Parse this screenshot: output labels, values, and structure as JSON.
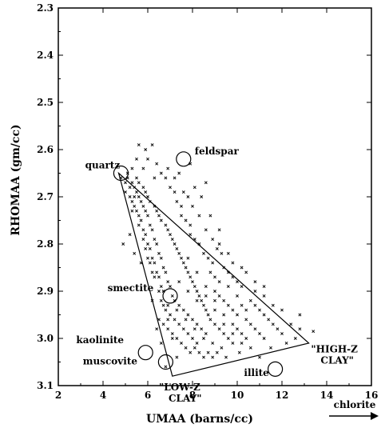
{
  "chart_data": {
    "type": "scatter",
    "title": "",
    "xlabel": "UMAA (barns/cc)",
    "ylabel": "RHOMAA (gm/cc)",
    "xlim": [
      2,
      16
    ],
    "ylim": [
      2.3,
      3.1
    ],
    "y_inverted": true,
    "x_ticks": [
      "2",
      "4",
      "6",
      "8",
      "10",
      "12",
      "14",
      "16"
    ],
    "y_ticks": [
      "2.3",
      "2.4",
      "2.5",
      "2.6",
      "2.7",
      "2.8",
      "2.9",
      "3.0",
      "3.1"
    ],
    "grid": false,
    "marker": "x",
    "arrow_label": "chlorite",
    "triangle": [
      {
        "x": 4.7,
        "y": 2.65
      },
      {
        "x": 13.2,
        "y": 3.01
      },
      {
        "x": 7.1,
        "y": 3.08
      }
    ],
    "triangle_labels": [
      {
        "lines": [
          "\"HIGH-Z",
          "CLAY\""
        ],
        "x": 13.3,
        "y": 3.03
      },
      {
        "lines": [
          "\"LOW-Z",
          "CLAY\""
        ],
        "x": 6.5,
        "y": 3.11
      }
    ],
    "minerals": [
      {
        "name": "quartz",
        "x": 4.8,
        "y": 2.65,
        "label_x": 3.2,
        "label_y": 2.64
      },
      {
        "name": "feldspar",
        "x": 7.6,
        "y": 2.62,
        "label_x": 8.1,
        "label_y": 2.61
      },
      {
        "name": "smectite",
        "x": 7.0,
        "y": 2.91,
        "label_x": 4.2,
        "label_y": 2.9
      },
      {
        "name": "kaolinite",
        "x": 5.9,
        "y": 3.03,
        "label_x": 2.8,
        "label_y": 3.01
      },
      {
        "name": "muscovite",
        "x": 6.8,
        "y": 3.05,
        "label_x": 3.1,
        "label_y": 3.055
      },
      {
        "name": "illite",
        "x": 11.7,
        "y": 3.065,
        "label_x": 10.3,
        "label_y": 3.08
      }
    ],
    "points": [
      [
        4.8,
        2.66
      ],
      [
        5.0,
        2.67
      ],
      [
        5.1,
        2.66
      ],
      [
        5.2,
        2.68
      ],
      [
        5.3,
        2.67
      ],
      [
        5.0,
        2.69
      ],
      [
        5.4,
        2.68
      ],
      [
        5.5,
        2.69
      ],
      [
        5.2,
        2.7
      ],
      [
        5.6,
        2.7
      ],
      [
        5.3,
        2.71
      ],
      [
        5.7,
        2.71
      ],
      [
        5.4,
        2.72
      ],
      [
        5.8,
        2.72
      ],
      [
        5.5,
        2.73
      ],
      [
        5.9,
        2.73
      ],
      [
        5.6,
        2.74
      ],
      [
        6.0,
        2.74
      ],
      [
        5.7,
        2.75
      ],
      [
        6.1,
        2.76
      ],
      [
        5.8,
        2.77
      ],
      [
        6.2,
        2.77
      ],
      [
        5.9,
        2.78
      ],
      [
        6.3,
        2.79
      ],
      [
        6.0,
        2.8
      ],
      [
        6.4,
        2.8
      ],
      [
        6.1,
        2.81
      ],
      [
        6.5,
        2.82
      ],
      [
        6.2,
        2.83
      ],
      [
        6.6,
        2.83
      ],
      [
        6.3,
        2.84
      ],
      [
        6.7,
        2.85
      ],
      [
        6.4,
        2.86
      ],
      [
        6.8,
        2.86
      ],
      [
        6.5,
        2.87
      ],
      [
        6.9,
        2.88
      ],
      [
        6.6,
        2.89
      ],
      [
        7.0,
        2.89
      ],
      [
        6.7,
        2.9
      ],
      [
        7.1,
        2.91
      ],
      [
        5.1,
        2.65
      ],
      [
        5.3,
        2.64
      ],
      [
        5.5,
        2.66
      ],
      [
        5.6,
        2.67
      ],
      [
        5.8,
        2.68
      ],
      [
        5.9,
        2.69
      ],
      [
        6.0,
        2.7
      ],
      [
        6.1,
        2.71
      ],
      [
        6.3,
        2.72
      ],
      [
        6.4,
        2.73
      ],
      [
        6.5,
        2.74
      ],
      [
        6.6,
        2.75
      ],
      [
        6.8,
        2.76
      ],
      [
        6.9,
        2.77
      ],
      [
        7.0,
        2.78
      ],
      [
        7.1,
        2.79
      ],
      [
        7.2,
        2.8
      ],
      [
        7.3,
        2.81
      ],
      [
        7.4,
        2.82
      ],
      [
        7.5,
        2.83
      ],
      [
        7.6,
        2.84
      ],
      [
        7.7,
        2.85
      ],
      [
        7.8,
        2.86
      ],
      [
        7.9,
        2.87
      ],
      [
        8.0,
        2.88
      ],
      [
        8.1,
        2.89
      ],
      [
        8.2,
        2.9
      ],
      [
        8.3,
        2.91
      ],
      [
        8.4,
        2.92
      ],
      [
        8.5,
        2.93
      ],
      [
        8.6,
        2.94
      ],
      [
        8.7,
        2.95
      ],
      [
        7.2,
        2.92
      ],
      [
        7.4,
        2.93
      ],
      [
        7.6,
        2.94
      ],
      [
        7.8,
        2.95
      ],
      [
        8.0,
        2.96
      ],
      [
        8.2,
        2.97
      ],
      [
        8.4,
        2.98
      ],
      [
        8.6,
        2.99
      ],
      [
        8.8,
        2.96
      ],
      [
        9.0,
        2.97
      ],
      [
        9.2,
        2.98
      ],
      [
        9.4,
        2.99
      ],
      [
        9.6,
        3.0
      ],
      [
        9.8,
        3.01
      ],
      [
        10.0,
        2.98
      ],
      [
        10.2,
        2.99
      ],
      [
        10.4,
        3.0
      ],
      [
        10.6,
        2.97
      ],
      [
        10.8,
        2.98
      ],
      [
        11.0,
        2.99
      ],
      [
        11.2,
        3.0
      ],
      [
        11.4,
        2.96
      ],
      [
        11.6,
        2.97
      ],
      [
        11.8,
        2.98
      ],
      [
        12.0,
        2.99
      ],
      [
        12.4,
        2.97
      ],
      [
        12.8,
        2.98
      ],
      [
        13.4,
        2.985
      ],
      [
        9.0,
        2.9
      ],
      [
        9.2,
        2.91
      ],
      [
        9.4,
        2.92
      ],
      [
        9.6,
        2.93
      ],
      [
        9.8,
        2.94
      ],
      [
        10.0,
        2.95
      ],
      [
        10.2,
        2.93
      ],
      [
        10.4,
        2.94
      ],
      [
        10.6,
        2.92
      ],
      [
        10.8,
        2.93
      ],
      [
        11.0,
        2.94
      ],
      [
        11.2,
        2.95
      ],
      [
        8.8,
        2.86
      ],
      [
        9.0,
        2.87
      ],
      [
        9.2,
        2.88
      ],
      [
        9.4,
        2.85
      ],
      [
        9.6,
        2.86
      ],
      [
        9.8,
        2.87
      ],
      [
        10.0,
        2.88
      ],
      [
        10.2,
        2.89
      ],
      [
        8.5,
        2.82
      ],
      [
        8.7,
        2.83
      ],
      [
        8.9,
        2.84
      ],
      [
        9.1,
        2.81
      ],
      [
        9.3,
        2.82
      ],
      [
        7.9,
        2.78
      ],
      [
        8.1,
        2.79
      ],
      [
        8.3,
        2.8
      ],
      [
        7.5,
        2.74
      ],
      [
        7.7,
        2.75
      ],
      [
        7.9,
        2.76
      ],
      [
        7.3,
        2.71
      ],
      [
        7.5,
        2.72
      ],
      [
        7.0,
        2.68
      ],
      [
        7.2,
        2.69
      ],
      [
        6.8,
        2.66
      ],
      [
        5.6,
        2.59
      ],
      [
        5.9,
        2.6
      ],
      [
        6.2,
        2.59
      ],
      [
        6.0,
        2.62
      ],
      [
        6.4,
        2.63
      ],
      [
        6.6,
        2.65
      ],
      [
        6.3,
        2.66
      ],
      [
        6.9,
        2.64
      ],
      [
        7.2,
        2.66
      ],
      [
        7.6,
        2.69
      ],
      [
        8.0,
        2.72
      ],
      [
        8.3,
        2.74
      ],
      [
        8.6,
        2.77
      ],
      [
        8.9,
        2.79
      ],
      [
        9.2,
        2.8
      ],
      [
        9.6,
        2.82
      ],
      [
        6.5,
        2.96
      ],
      [
        6.7,
        2.97
      ],
      [
        6.9,
        2.98
      ],
      [
        7.1,
        2.99
      ],
      [
        7.3,
        3.0
      ],
      [
        7.5,
        3.01
      ],
      [
        7.7,
        3.02
      ],
      [
        7.9,
        3.03
      ],
      [
        8.1,
        3.02
      ],
      [
        8.3,
        3.03
      ],
      [
        8.5,
        3.04
      ],
      [
        8.7,
        3.03
      ],
      [
        8.9,
        3.04
      ],
      [
        9.1,
        3.03
      ],
      [
        9.5,
        3.04
      ],
      [
        10.1,
        3.03
      ],
      [
        6.8,
        2.94
      ],
      [
        7.0,
        2.95
      ],
      [
        7.2,
        2.96
      ],
      [
        7.4,
        2.97
      ],
      [
        7.6,
        2.98
      ],
      [
        7.8,
        2.99
      ],
      [
        8.0,
        3.0
      ],
      [
        8.2,
        3.01
      ],
      [
        6.6,
        2.92
      ],
      [
        6.9,
        2.93
      ],
      [
        7.3,
        2.94
      ],
      [
        7.7,
        2.96
      ],
      [
        8.1,
        2.98
      ],
      [
        8.5,
        3.0
      ],
      [
        8.9,
        3.01
      ],
      [
        9.3,
        3.02
      ],
      [
        5.9,
        2.81
      ],
      [
        6.1,
        2.84
      ],
      [
        6.3,
        2.87
      ],
      [
        6.5,
        2.9
      ],
      [
        6.7,
        2.93
      ],
      [
        6.9,
        2.96
      ],
      [
        7.1,
        3.0
      ],
      [
        7.3,
        3.04
      ],
      [
        4.9,
        2.8
      ],
      [
        5.2,
        2.78
      ],
      [
        5.4,
        2.82
      ],
      [
        5.7,
        2.84
      ],
      [
        6.2,
        2.92
      ],
      [
        6.4,
        2.98
      ],
      [
        6.6,
        3.01
      ],
      [
        6.8,
        3.06
      ],
      [
        7.8,
        2.83
      ],
      [
        8.2,
        2.86
      ],
      [
        8.6,
        2.89
      ],
      [
        9.0,
        2.92
      ],
      [
        9.4,
        2.95
      ],
      [
        9.8,
        2.97
      ],
      [
        10.2,
        3.01
      ],
      [
        10.6,
        3.02
      ],
      [
        7.4,
        2.88
      ],
      [
        7.8,
        2.9
      ],
      [
        8.2,
        2.92
      ],
      [
        8.6,
        2.91
      ],
      [
        9.0,
        2.94
      ],
      [
        9.4,
        2.97
      ],
      [
        9.8,
        2.99
      ],
      [
        10.4,
        2.96
      ],
      [
        5.5,
        2.62
      ],
      [
        5.8,
        2.64
      ],
      [
        5.4,
        2.7
      ],
      [
        5.3,
        2.73
      ],
      [
        5.6,
        2.76
      ],
      [
        5.8,
        2.79
      ],
      [
        6.0,
        2.83
      ],
      [
        6.2,
        2.86
      ],
      [
        8.4,
        2.7
      ],
      [
        8.8,
        2.74
      ],
      [
        9.2,
        2.77
      ],
      [
        7.8,
        2.7
      ],
      [
        8.1,
        2.68
      ],
      [
        7.4,
        2.65
      ],
      [
        7.9,
        2.63
      ],
      [
        8.6,
        2.67
      ],
      [
        11.0,
        3.04
      ],
      [
        11.5,
        3.02
      ],
      [
        12.2,
        3.01
      ],
      [
        12.6,
        3.0
      ],
      [
        10.8,
        2.9
      ],
      [
        11.2,
        2.91
      ],
      [
        11.6,
        2.93
      ],
      [
        12.0,
        2.94
      ],
      [
        9.6,
        2.89
      ],
      [
        10.0,
        2.91
      ],
      [
        10.4,
        2.86
      ],
      [
        10.8,
        2.88
      ],
      [
        11.2,
        2.89
      ],
      [
        9.8,
        2.84
      ],
      [
        10.2,
        2.85
      ],
      [
        12.8,
        2.95
      ]
    ]
  }
}
